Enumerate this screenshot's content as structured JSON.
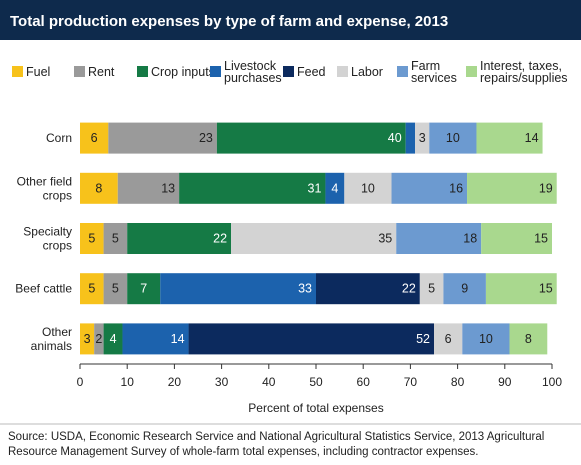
{
  "chart_data": {
    "type": "stacked-bar-horizontal",
    "title": "Total production expenses by type of farm and expense, 2013",
    "categories": [
      "Corn",
      "Other field\ncrops",
      "Specialty\ncrops",
      "Beef cattle",
      "Other\nanimals"
    ],
    "series": [
      {
        "name": "Fuel",
        "color": "#f7c21b",
        "values": [
          6,
          8,
          5,
          5,
          3
        ]
      },
      {
        "name": "Rent",
        "color": "#9a9a9a",
        "values": [
          23,
          13,
          5,
          5,
          2
        ]
      },
      {
        "name": "Crop inputs",
        "color": "#157a45",
        "values": [
          40,
          31,
          22,
          7,
          4
        ]
      },
      {
        "name": "Livestock\npurchases",
        "color": "#1c62ad",
        "values": [
          2,
          4,
          null,
          33,
          14
        ],
        "value_labels": [
          null,
          "4",
          null,
          "33",
          "14"
        ]
      },
      {
        "name": "Feed",
        "color": "#0c2a5e",
        "values": [
          null,
          null,
          null,
          22,
          52
        ]
      },
      {
        "name": "Labor",
        "color": "#d3d3d3",
        "values": [
          3,
          10,
          35,
          5,
          6
        ]
      },
      {
        "name": "Farm\nservices",
        "color": "#6c9ad0",
        "values": [
          10,
          16,
          18,
          9,
          10
        ]
      },
      {
        "name": "Interest, taxes,\nrepairs/supplies",
        "color": "#a9d88e",
        "values": [
          14,
          19,
          15,
          15,
          8
        ]
      }
    ],
    "xlim": [
      0,
      100
    ],
    "xticks": [
      0,
      10,
      20,
      30,
      40,
      50,
      60,
      70,
      80,
      90,
      100
    ],
    "xlabel": "Percent of total expenses",
    "source": "Source: USDA, Economic Research Service and National Agricultural Statistics Service, 2013 Agricultural\nResource Management Survey of whole-farm total expenses, including contractor expenses."
  }
}
